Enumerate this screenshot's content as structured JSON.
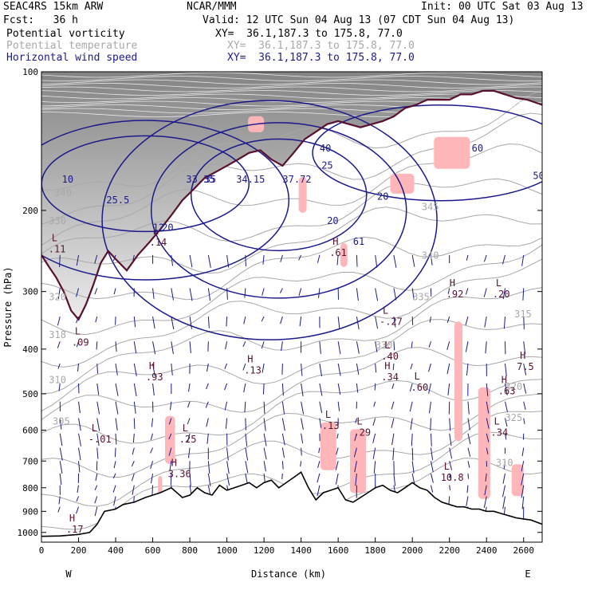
{
  "header": {
    "model": "SEAC4RS 15km ARW",
    "org": "NCAR/MMM",
    "init": "Init: 00 UTC Sat 03 Aug 13",
    "fcst": "Fcst:   36 h",
    "valid": "Valid: 12 UTC Sun 04 Aug 13 (07 CDT Sun 04 Aug 13)",
    "fields": [
      {
        "name": "Potential vorticity",
        "xy": "XY=  36.1,187.3 to 175.8, 77.0",
        "color": "#000000"
      },
      {
        "name": "Potential temperature",
        "xy": "XY=  36.1,187.3 to 175.8, 77.0",
        "color": "#a8a8a8"
      },
      {
        "name": "Horizontal wind speed",
        "xy": "XY=  36.1,187.3 to 175.8, 77.0",
        "color": "#1a1a8c"
      }
    ]
  },
  "chart_data": {
    "type": "line",
    "xlabel": "Distance (km)",
    "ylabel": "Pressure (hPa)",
    "xlim": [
      0,
      2700
    ],
    "ylim": [
      1050,
      100
    ],
    "y_scale": "log",
    "x_ticks": [
      "0",
      "200",
      "400",
      "600",
      "800",
      "1000",
      "1200",
      "1400",
      "1600",
      "1800",
      "2000",
      "2200",
      "2400",
      "2600"
    ],
    "y_ticks": [
      "100",
      "200",
      "300",
      "400",
      "500",
      "600",
      "700",
      "800",
      "900",
      "1000"
    ],
    "end_labels": {
      "left": "W",
      "right": "E"
    },
    "colors": {
      "theta": "#a8a8a8",
      "wind": "#1a1a8c",
      "pv_line": "#5a1030",
      "pv_fill": "#ffb6b9",
      "terrain": "#000000"
    },
    "series": [
      {
        "name": "Terrain surface",
        "x": [
          0,
          100,
          200,
          260,
          300,
          340,
          400,
          440,
          500,
          560,
          600,
          640,
          700,
          760,
          800,
          840,
          880,
          920,
          960,
          1000,
          1040,
          1080,
          1120,
          1160,
          1200,
          1240,
          1280,
          1320,
          1360,
          1400,
          1440,
          1480,
          1520,
          1560,
          1600,
          1640,
          1680,
          1720,
          1760,
          1800,
          1840,
          1880,
          1920,
          1960,
          2000,
          2040,
          2080,
          2120,
          2160,
          2200,
          2240,
          2280,
          2320,
          2360,
          2400,
          2440,
          2480,
          2520,
          2560,
          2600,
          2640,
          2700
        ],
        "y": [
          1020,
          1018,
          1010,
          1000,
          960,
          900,
          890,
          870,
          860,
          840,
          830,
          820,
          800,
          840,
          830,
          800,
          820,
          830,
          790,
          810,
          800,
          790,
          780,
          800,
          780,
          770,
          800,
          780,
          760,
          740,
          800,
          850,
          820,
          810,
          800,
          850,
          860,
          840,
          820,
          800,
          790,
          810,
          820,
          800,
          780,
          800,
          810,
          840,
          860,
          870,
          880,
          880,
          890,
          890,
          900,
          900,
          910,
          920,
          930,
          935,
          940,
          960
        ]
      },
      {
        "name": "Tropopause PV contour",
        "x": [
          0,
          40,
          80,
          120,
          160,
          200,
          240,
          280,
          320,
          360,
          400,
          460,
          520,
          580,
          640,
          700,
          760,
          820,
          880,
          940,
          1000,
          1060,
          1120,
          1180,
          1240,
          1300,
          1360,
          1420,
          1480,
          1540,
          1600,
          1660,
          1720,
          1780,
          1840,
          1900,
          1960,
          2020,
          2080,
          2140,
          2200,
          2260,
          2320,
          2380,
          2440,
          2500,
          2560,
          2620,
          2700
        ],
        "y": [
          250,
          265,
          280,
          300,
          330,
          345,
          320,
          290,
          260,
          245,
          255,
          270,
          250,
          235,
          220,
          205,
          190,
          180,
          170,
          165,
          160,
          155,
          150,
          148,
          155,
          160,
          150,
          140,
          135,
          130,
          128,
          130,
          132,
          130,
          128,
          125,
          120,
          118,
          115,
          115,
          115,
          112,
          112,
          110,
          110,
          112,
          114,
          115,
          118
        ]
      },
      {
        "name": "Wind-speed contours (annotated)",
        "labels": [
          "10",
          "25.5",
          "20",
          "33.35",
          "35",
          "34.15",
          "37.72",
          "25",
          "20",
          "61",
          "12",
          "40",
          "20",
          "60",
          "50"
        ]
      },
      {
        "name": "Potential temperature isentropes",
        "labels": [
          "340",
          "330",
          "320",
          "318",
          "310",
          "305",
          "345",
          "340",
          "335",
          "330",
          "325",
          "320",
          "315",
          "310"
        ]
      }
    ],
    "extrema": [
      {
        "t": "L",
        "v": ".11"
      },
      {
        "t": "L",
        "v": ".14"
      },
      {
        "t": "L",
        "v": ".09"
      },
      {
        "t": "H",
        "v": ".93"
      },
      {
        "t": "H",
        "v": ".13"
      },
      {
        "t": "H",
        "v": ".61"
      },
      {
        "t": "L",
        "v": "-.27"
      },
      {
        "t": "L",
        "v": ".40"
      },
      {
        "t": "H",
        "v": ".92"
      },
      {
        "t": "L",
        "v": ".20"
      },
      {
        "t": "H",
        "v": ".34"
      },
      {
        "t": "L",
        "v": ".60"
      },
      {
        "t": "H",
        "v": ".63"
      },
      {
        "t": "H",
        "v": "7.5"
      },
      {
        "t": "L",
        "v": "-.01"
      },
      {
        "t": "L",
        "v": ".25"
      },
      {
        "t": "L",
        "v": ".13"
      },
      {
        "t": "L",
        "v": ".29"
      },
      {
        "t": "L",
        "v": ".34"
      },
      {
        "t": "L",
        "v": "10.8"
      },
      {
        "t": "H",
        "v": ".17"
      },
      {
        "t": "H",
        "v": "3.36"
      }
    ],
    "grid": false
  }
}
